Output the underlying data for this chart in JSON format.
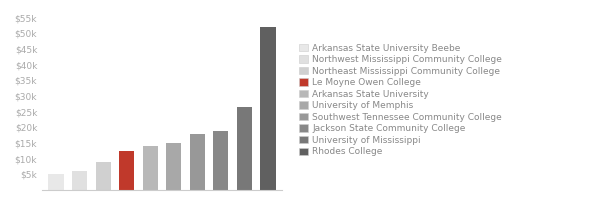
{
  "categories": [
    "Arkansas State University Beebe",
    "Northwest Mississippi Community College",
    "Northeast Mississippi Community College",
    "Le Moyne Owen College",
    "Arkansas State University",
    "University of Memphis",
    "Southwest Tennessee Community College",
    "Jackson State Community College",
    "University of Mississippi",
    "Rhodes College"
  ],
  "values": [
    5000,
    6200,
    8800,
    12500,
    14000,
    15000,
    18000,
    19000,
    26500,
    52000
  ],
  "bar_colors": [
    "#e8e8e8",
    "#e0e0e0",
    "#d0d0d0",
    "#c0392b",
    "#b8b8b8",
    "#a8a8a8",
    "#989898",
    "#888888",
    "#787878",
    "#606060"
  ],
  "ylim": [
    0,
    57500
  ],
  "yticks": [
    5000,
    10000,
    15000,
    20000,
    25000,
    30000,
    35000,
    40000,
    45000,
    50000,
    55000
  ],
  "ytick_labels": [
    "$5k",
    "$10k",
    "$15k",
    "$20k",
    "$25k",
    "$30k",
    "$35k",
    "$40k",
    "$45k",
    "$50k",
    "$55k"
  ],
  "background_color": "#ffffff",
  "legend_fontsize": 6.5,
  "tick_fontsize": 6.5,
  "bar_width": 0.65
}
